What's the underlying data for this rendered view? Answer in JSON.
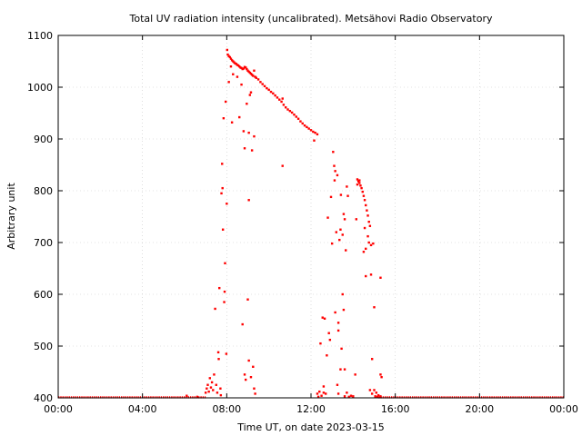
{
  "chart_data": {
    "type": "scatter",
    "title": "Total UV radiation intensity (uncalibrated). Metsähovi Radio Observatory",
    "xlabel": "Time UT, on date 2023-03-15",
    "ylabel": "Arbitrary unit",
    "xlim": [
      0,
      24
    ],
    "ylim": [
      400,
      1100
    ],
    "x_unit": "hours UT",
    "x_ticks": [
      {
        "value": 0,
        "label": "00:00"
      },
      {
        "value": 4,
        "label": "04:00"
      },
      {
        "value": 8,
        "label": "08:00"
      },
      {
        "value": 12,
        "label": "12:00"
      },
      {
        "value": 16,
        "label": "16:00"
      },
      {
        "value": 20,
        "label": "20:00"
      },
      {
        "value": 24,
        "label": "00:00"
      }
    ],
    "y_ticks": [
      400,
      500,
      600,
      700,
      800,
      900,
      1000,
      1100
    ],
    "grid": true,
    "legend": "none",
    "marker_color": "#ff0000",
    "baseline_segments": [
      {
        "x_start": 0.0,
        "x_end": 7.0,
        "y": 401
      },
      {
        "x_start": 15.2,
        "x_end": 24.0,
        "y": 401
      }
    ],
    "points": [
      [
        6.1,
        404
      ],
      [
        6.6,
        402
      ],
      [
        7.0,
        410
      ],
      [
        7.05,
        418
      ],
      [
        7.1,
        425
      ],
      [
        7.15,
        412
      ],
      [
        7.2,
        438
      ],
      [
        7.25,
        420
      ],
      [
        7.3,
        430
      ],
      [
        7.35,
        415
      ],
      [
        7.4,
        445
      ],
      [
        7.45,
        572
      ],
      [
        7.5,
        425
      ],
      [
        7.55,
        410
      ],
      [
        7.6,
        488
      ],
      [
        7.62,
        475
      ],
      [
        7.65,
        612
      ],
      [
        7.7,
        418
      ],
      [
        7.72,
        405
      ],
      [
        7.75,
        795
      ],
      [
        7.78,
        852
      ],
      [
        7.8,
        805
      ],
      [
        7.82,
        725
      ],
      [
        7.85,
        940
      ],
      [
        7.88,
        585
      ],
      [
        7.9,
        605
      ],
      [
        7.92,
        660
      ],
      [
        7.95,
        972
      ],
      [
        7.98,
        485
      ],
      [
        8.0,
        775
      ],
      [
        8.02,
        1072
      ],
      [
        8.05,
        1063
      ],
      [
        8.1,
        1060
      ],
      [
        8.15,
        1058
      ],
      [
        8.2,
        1055
      ],
      [
        8.25,
        1052
      ],
      [
        8.3,
        1050
      ],
      [
        8.35,
        1048
      ],
      [
        8.4,
        1046
      ],
      [
        8.45,
        1045
      ],
      [
        8.5,
        1043
      ],
      [
        8.55,
        1042
      ],
      [
        8.6,
        1040
      ],
      [
        8.65,
        1038
      ],
      [
        8.7,
        1037
      ],
      [
        8.75,
        1035
      ],
      [
        8.8,
        1036
      ],
      [
        8.85,
        1039
      ],
      [
        8.9,
        1038
      ],
      [
        8.95,
        1035
      ],
      [
        9.0,
        1032
      ],
      [
        9.05,
        1030
      ],
      [
        9.1,
        1028
      ],
      [
        9.15,
        1026
      ],
      [
        9.2,
        1024
      ],
      [
        9.25,
        1022
      ],
      [
        9.3,
        1032
      ],
      [
        9.35,
        1020
      ],
      [
        9.4,
        1018
      ],
      [
        8.1,
        1010
      ],
      [
        8.2,
        1040
      ],
      [
        8.3,
        1025
      ],
      [
        8.5,
        1020
      ],
      [
        8.6,
        942
      ],
      [
        8.7,
        1005
      ],
      [
        8.8,
        915
      ],
      [
        8.85,
        882
      ],
      [
        8.95,
        968
      ],
      [
        9.05,
        912
      ],
      [
        9.1,
        985
      ],
      [
        9.15,
        990
      ],
      [
        9.2,
        878
      ],
      [
        9.3,
        905
      ],
      [
        8.25,
        932
      ],
      [
        8.75,
        542
      ],
      [
        8.85,
        445
      ],
      [
        8.9,
        435
      ],
      [
        9.0,
        590
      ],
      [
        9.05,
        782
      ],
      [
        9.05,
        472
      ],
      [
        9.15,
        440
      ],
      [
        9.25,
        460
      ],
      [
        9.3,
        418
      ],
      [
        9.35,
        408
      ],
      [
        9.5,
        1015
      ],
      [
        9.6,
        1010
      ],
      [
        9.7,
        1006
      ],
      [
        9.8,
        1002
      ],
      [
        9.9,
        998
      ],
      [
        10.0,
        995
      ],
      [
        10.1,
        991
      ],
      [
        10.2,
        988
      ],
      [
        10.3,
        984
      ],
      [
        10.4,
        980
      ],
      [
        10.5,
        976
      ],
      [
        10.6,
        972
      ],
      [
        10.65,
        978
      ],
      [
        10.7,
        966
      ],
      [
        10.8,
        961
      ],
      [
        10.9,
        957
      ],
      [
        11.0,
        954
      ],
      [
        11.1,
        951
      ],
      [
        11.2,
        947
      ],
      [
        11.3,
        943
      ],
      [
        11.4,
        939
      ],
      [
        11.5,
        934
      ],
      [
        11.6,
        930
      ],
      [
        11.7,
        926
      ],
      [
        11.8,
        923
      ],
      [
        11.9,
        920
      ],
      [
        12.0,
        917
      ],
      [
        12.1,
        914
      ],
      [
        12.2,
        912
      ],
      [
        12.3,
        909
      ],
      [
        10.65,
        848
      ],
      [
        12.15,
        897
      ],
      [
        12.3,
        408
      ],
      [
        12.35,
        402
      ],
      [
        12.4,
        412
      ],
      [
        12.45,
        505
      ],
      [
        12.5,
        404
      ],
      [
        12.55,
        555
      ],
      [
        12.6,
        422
      ],
      [
        12.65,
        553
      ],
      [
        12.7,
        408
      ],
      [
        12.75,
        482
      ],
      [
        12.8,
        748
      ],
      [
        12.85,
        525
      ],
      [
        12.9,
        512
      ],
      [
        12.95,
        788
      ],
      [
        13.0,
        698
      ],
      [
        13.05,
        875
      ],
      [
        13.1,
        848
      ],
      [
        13.12,
        820
      ],
      [
        13.15,
        838
      ],
      [
        13.2,
        720
      ],
      [
        13.25,
        830
      ],
      [
        13.3,
        545
      ],
      [
        13.35,
        705
      ],
      [
        13.4,
        725
      ],
      [
        13.42,
        792
      ],
      [
        13.45,
        495
      ],
      [
        13.5,
        715
      ],
      [
        13.55,
        755
      ],
      [
        13.6,
        745
      ],
      [
        13.65,
        685
      ],
      [
        13.7,
        808
      ],
      [
        13.75,
        790
      ],
      [
        13.5,
        600
      ],
      [
        13.55,
        570
      ],
      [
        13.4,
        455
      ],
      [
        13.6,
        455
      ],
      [
        13.25,
        425
      ],
      [
        13.3,
        408
      ],
      [
        13.6,
        403
      ],
      [
        13.7,
        410
      ],
      [
        13.8,
        402
      ],
      [
        13.9,
        404
      ],
      [
        14.0,
        403
      ],
      [
        14.1,
        445
      ],
      [
        13.15,
        565
      ],
      [
        13.3,
        530
      ],
      [
        12.6,
        410
      ],
      [
        14.15,
        745
      ],
      [
        14.2,
        822
      ],
      [
        14.25,
        818
      ],
      [
        14.3,
        815
      ],
      [
        14.35,
        810
      ],
      [
        14.4,
        805
      ],
      [
        14.45,
        798
      ],
      [
        14.5,
        790
      ],
      [
        14.55,
        782
      ],
      [
        14.6,
        772
      ],
      [
        14.65,
        762
      ],
      [
        14.7,
        752
      ],
      [
        14.75,
        740
      ],
      [
        14.8,
        732
      ],
      [
        14.2,
        812
      ],
      [
        14.3,
        820
      ],
      [
        14.55,
        728
      ],
      [
        14.6,
        688
      ],
      [
        14.7,
        712
      ],
      [
        14.75,
        700
      ],
      [
        14.85,
        695
      ],
      [
        14.95,
        698
      ],
      [
        14.5,
        682
      ],
      [
        14.6,
        635
      ],
      [
        14.85,
        638
      ],
      [
        15.0,
        575
      ],
      [
        15.3,
        632
      ],
      [
        14.9,
        475
      ],
      [
        15.3,
        445
      ],
      [
        15.35,
        440
      ],
      [
        14.8,
        415
      ],
      [
        14.9,
        408
      ],
      [
        15.0,
        415
      ],
      [
        15.05,
        403
      ],
      [
        15.1,
        410
      ],
      [
        15.15,
        402
      ],
      [
        15.2,
        405
      ],
      [
        15.3,
        403
      ]
    ]
  }
}
